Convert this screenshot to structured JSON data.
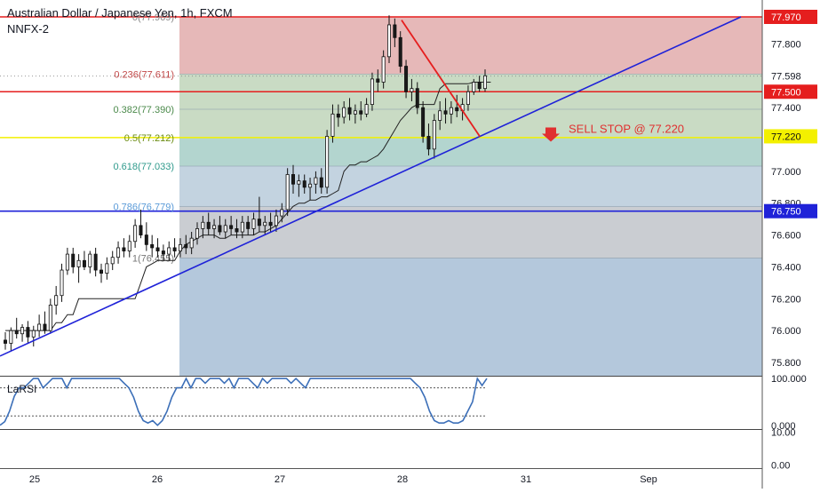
{
  "header": {
    "title": "Australian Dollar / Japanese Yen, 1h, FXCM",
    "subtitle": "NNFX-2"
  },
  "colors": {
    "fib_red_zone": "#e6b8b8",
    "fib_green_zone": "#c9dbc4",
    "fib_teal_zone": "#b3d5cf",
    "fib_blue_zone": "#c3d3e0",
    "fib_gray_zone": "#cacdd2",
    "fib_lower_zone": "#b4c8dc",
    "trendline": "#1f22d8",
    "red_line": "#e51e1e",
    "yellow_line": "#f3f000",
    "blue_line": "#1f22d8",
    "annotation": "#e03030",
    "rsi_line": "#3c6fb8",
    "candle_up": "#ffffff",
    "candle_down": "#1a1a1a",
    "baseline": "#222222"
  },
  "chart_data": {
    "type": "candlestick",
    "title": "Australian Dollar / Japanese Yen, 1h, FXCM",
    "subtitle": "NNFX-2",
    "price_axis": {
      "ylim": [
        75.72,
        78.04
      ],
      "ticks": [
        "77.800",
        "77.400",
        "77.000",
        "76.800",
        "76.600",
        "76.400",
        "76.200",
        "76.000",
        "75.800"
      ],
      "tick_values": [
        77.8,
        77.4,
        77.0,
        76.8,
        76.6,
        76.4,
        76.2,
        76.0,
        75.8
      ]
    },
    "x_axis": {
      "labels": [
        "25",
        "26",
        "27",
        "28",
        "31",
        "Sep"
      ],
      "xlim": [
        0,
        932
      ]
    },
    "price_labels": [
      {
        "text": "77.970",
        "value": 77.97,
        "style": "red"
      },
      {
        "text": "77.598",
        "value": 77.598,
        "style": "gray"
      },
      {
        "text": "77.500",
        "value": 77.5,
        "style": "red"
      },
      {
        "text": "77.220",
        "value": 77.22,
        "style": "yellow"
      },
      {
        "text": "76.750",
        "value": 76.75,
        "style": "blue"
      }
    ],
    "horizontal_lines": [
      {
        "value": 77.97,
        "color": "red"
      },
      {
        "value": 77.5,
        "color": "red"
      },
      {
        "value": 77.212,
        "color": "yellow"
      },
      {
        "value": 76.75,
        "color": "blue"
      }
    ],
    "fibonacci": {
      "levels": [
        {
          "ratio": 0,
          "value": 77.97,
          "label": "0(77.969)"
        },
        {
          "ratio": 0.236,
          "value": 77.611,
          "label": "0.236(77.611)"
        },
        {
          "ratio": 0.382,
          "value": 77.39,
          "label": "0.382(77.390)"
        },
        {
          "ratio": 0.5,
          "value": 77.212,
          "label": "0.5(77.212)"
        },
        {
          "ratio": 0.618,
          "value": 77.033,
          "label": "0.618(77.033)"
        },
        {
          "ratio": 0.786,
          "value": 76.779,
          "label": "0.786(76.779)"
        },
        {
          "ratio": 1,
          "value": 76.455,
          "label": "1(76.455)"
        }
      ]
    },
    "annotation": {
      "text": "SELL STOP @ 77.220",
      "value": 77.22
    },
    "trendline": {
      "from": {
        "x_label": "24",
        "price": 75.84
      },
      "to": {
        "x_label": "Sep+",
        "price": 77.97
      }
    },
    "red_diagonal": {
      "from_price": 77.95,
      "to_price": 77.22
    },
    "candles": [
      {
        "o": 75.94,
        "h": 75.99,
        "l": 75.88,
        "c": 75.92
      },
      {
        "o": 75.92,
        "h": 76.02,
        "l": 75.87,
        "c": 76.0
      },
      {
        "o": 76.0,
        "h": 76.08,
        "l": 75.95,
        "c": 75.98
      },
      {
        "o": 75.98,
        "h": 76.04,
        "l": 75.93,
        "c": 76.02
      },
      {
        "o": 76.02,
        "h": 76.06,
        "l": 75.92,
        "c": 75.96
      },
      {
        "o": 75.96,
        "h": 76.03,
        "l": 75.9,
        "c": 76.0
      },
      {
        "o": 76.0,
        "h": 76.1,
        "l": 75.96,
        "c": 76.04
      },
      {
        "o": 76.04,
        "h": 76.12,
        "l": 75.98,
        "c": 76.0
      },
      {
        "o": 76.0,
        "h": 76.2,
        "l": 75.98,
        "c": 76.16
      },
      {
        "o": 76.16,
        "h": 76.28,
        "l": 76.1,
        "c": 76.22
      },
      {
        "o": 76.22,
        "h": 76.42,
        "l": 76.18,
        "c": 76.38
      },
      {
        "o": 76.38,
        "h": 76.52,
        "l": 76.35,
        "c": 76.48
      },
      {
        "o": 76.48,
        "h": 76.52,
        "l": 76.36,
        "c": 76.4
      },
      {
        "o": 76.4,
        "h": 76.48,
        "l": 76.3,
        "c": 76.44
      },
      {
        "o": 76.44,
        "h": 76.5,
        "l": 76.38,
        "c": 76.4
      },
      {
        "o": 76.4,
        "h": 76.5,
        "l": 76.36,
        "c": 76.48
      },
      {
        "o": 76.48,
        "h": 76.52,
        "l": 76.34,
        "c": 76.38
      },
      {
        "o": 76.38,
        "h": 76.42,
        "l": 76.3,
        "c": 76.36
      },
      {
        "o": 76.36,
        "h": 76.46,
        "l": 76.32,
        "c": 76.42
      },
      {
        "o": 76.42,
        "h": 76.5,
        "l": 76.38,
        "c": 76.46
      },
      {
        "o": 76.46,
        "h": 76.56,
        "l": 76.42,
        "c": 76.52
      },
      {
        "o": 76.52,
        "h": 76.58,
        "l": 76.46,
        "c": 76.5
      },
      {
        "o": 76.5,
        "h": 76.6,
        "l": 76.46,
        "c": 76.56
      },
      {
        "o": 76.56,
        "h": 76.7,
        "l": 76.52,
        "c": 76.66
      },
      {
        "o": 76.66,
        "h": 76.76,
        "l": 76.58,
        "c": 76.6
      },
      {
        "o": 76.6,
        "h": 76.68,
        "l": 76.5,
        "c": 76.54
      },
      {
        "o": 76.54,
        "h": 76.6,
        "l": 76.46,
        "c": 76.52
      },
      {
        "o": 76.52,
        "h": 76.58,
        "l": 76.46,
        "c": 76.5
      },
      {
        "o": 76.5,
        "h": 76.54,
        "l": 76.44,
        "c": 76.48
      },
      {
        "o": 76.48,
        "h": 76.56,
        "l": 76.44,
        "c": 76.52
      },
      {
        "o": 76.52,
        "h": 76.58,
        "l": 76.46,
        "c": 76.5
      },
      {
        "o": 76.5,
        "h": 76.58,
        "l": 76.46,
        "c": 76.54
      },
      {
        "o": 76.54,
        "h": 76.6,
        "l": 76.48,
        "c": 76.52
      },
      {
        "o": 76.52,
        "h": 76.62,
        "l": 76.48,
        "c": 76.58
      },
      {
        "o": 76.58,
        "h": 76.68,
        "l": 76.54,
        "c": 76.64
      },
      {
        "o": 76.64,
        "h": 76.72,
        "l": 76.58,
        "c": 76.68
      },
      {
        "o": 76.68,
        "h": 76.74,
        "l": 76.6,
        "c": 76.64
      },
      {
        "o": 76.64,
        "h": 76.7,
        "l": 76.58,
        "c": 76.66
      },
      {
        "o": 76.66,
        "h": 76.72,
        "l": 76.6,
        "c": 76.62
      },
      {
        "o": 76.62,
        "h": 76.7,
        "l": 76.58,
        "c": 76.66
      },
      {
        "o": 76.66,
        "h": 76.72,
        "l": 76.6,
        "c": 76.64
      },
      {
        "o": 76.64,
        "h": 76.7,
        "l": 76.58,
        "c": 76.62
      },
      {
        "o": 76.62,
        "h": 76.72,
        "l": 76.58,
        "c": 76.68
      },
      {
        "o": 76.68,
        "h": 76.72,
        "l": 76.6,
        "c": 76.64
      },
      {
        "o": 76.64,
        "h": 76.74,
        "l": 76.6,
        "c": 76.7
      },
      {
        "o": 76.7,
        "h": 76.84,
        "l": 76.62,
        "c": 76.66
      },
      {
        "o": 76.66,
        "h": 76.72,
        "l": 76.6,
        "c": 76.68
      },
      {
        "o": 76.68,
        "h": 76.74,
        "l": 76.62,
        "c": 76.66
      },
      {
        "o": 76.66,
        "h": 76.76,
        "l": 76.62,
        "c": 76.72
      },
      {
        "o": 76.72,
        "h": 76.8,
        "l": 76.68,
        "c": 76.76
      },
      {
        "o": 76.76,
        "h": 77.02,
        "l": 76.72,
        "c": 76.98
      },
      {
        "o": 76.98,
        "h": 77.04,
        "l": 76.86,
        "c": 76.92
      },
      {
        "o": 76.92,
        "h": 76.98,
        "l": 76.84,
        "c": 76.94
      },
      {
        "o": 76.94,
        "h": 76.98,
        "l": 76.86,
        "c": 76.9
      },
      {
        "o": 76.9,
        "h": 76.96,
        "l": 76.82,
        "c": 76.92
      },
      {
        "o": 76.92,
        "h": 77.0,
        "l": 76.86,
        "c": 76.96
      },
      {
        "o": 76.96,
        "h": 77.02,
        "l": 76.86,
        "c": 76.9
      },
      {
        "o": 76.9,
        "h": 77.26,
        "l": 76.86,
        "c": 77.22
      },
      {
        "o": 77.22,
        "h": 77.42,
        "l": 77.18,
        "c": 77.36
      },
      {
        "o": 77.36,
        "h": 77.42,
        "l": 77.28,
        "c": 77.34
      },
      {
        "o": 77.34,
        "h": 77.44,
        "l": 77.3,
        "c": 77.4
      },
      {
        "o": 77.4,
        "h": 77.46,
        "l": 77.32,
        "c": 77.36
      },
      {
        "o": 77.36,
        "h": 77.42,
        "l": 77.3,
        "c": 77.38
      },
      {
        "o": 77.38,
        "h": 77.44,
        "l": 77.32,
        "c": 77.36
      },
      {
        "o": 77.36,
        "h": 77.46,
        "l": 77.34,
        "c": 77.42
      },
      {
        "o": 77.42,
        "h": 77.62,
        "l": 77.38,
        "c": 77.58
      },
      {
        "o": 77.58,
        "h": 77.64,
        "l": 77.5,
        "c": 77.56
      },
      {
        "o": 77.56,
        "h": 77.76,
        "l": 77.52,
        "c": 77.72
      },
      {
        "o": 77.72,
        "h": 77.98,
        "l": 77.68,
        "c": 77.92
      },
      {
        "o": 77.92,
        "h": 77.96,
        "l": 77.78,
        "c": 77.84
      },
      {
        "o": 77.84,
        "h": 77.88,
        "l": 77.62,
        "c": 77.66
      },
      {
        "o": 77.66,
        "h": 77.7,
        "l": 77.46,
        "c": 77.5
      },
      {
        "o": 77.5,
        "h": 77.58,
        "l": 77.44,
        "c": 77.52
      },
      {
        "o": 77.52,
        "h": 77.56,
        "l": 77.36,
        "c": 77.4
      },
      {
        "o": 77.4,
        "h": 77.44,
        "l": 77.18,
        "c": 77.22
      },
      {
        "o": 77.22,
        "h": 77.3,
        "l": 77.1,
        "c": 77.14
      },
      {
        "o": 77.14,
        "h": 77.36,
        "l": 77.08,
        "c": 77.32
      },
      {
        "o": 77.32,
        "h": 77.44,
        "l": 77.26,
        "c": 77.38
      },
      {
        "o": 77.38,
        "h": 77.46,
        "l": 77.3,
        "c": 77.36
      },
      {
        "o": 77.36,
        "h": 77.44,
        "l": 77.3,
        "c": 77.4
      },
      {
        "o": 77.4,
        "h": 77.48,
        "l": 77.34,
        "c": 77.38
      },
      {
        "o": 77.38,
        "h": 77.46,
        "l": 77.32,
        "c": 77.42
      },
      {
        "o": 77.42,
        "h": 77.54,
        "l": 77.38,
        "c": 77.5
      },
      {
        "o": 77.5,
        "h": 77.58,
        "l": 77.48,
        "c": 77.56
      },
      {
        "o": 77.56,
        "h": 77.6,
        "l": 77.5,
        "c": 77.52
      },
      {
        "o": 77.52,
        "h": 77.64,
        "l": 77.5,
        "c": 77.6
      }
    ],
    "baseline": [
      76.0,
      76.0,
      76.0,
      76.0,
      76.0,
      76.0,
      76.0,
      76.0,
      76.0,
      76.05,
      76.05,
      76.1,
      76.1,
      76.2,
      76.2,
      76.2,
      76.2,
      76.2,
      76.2,
      76.2,
      76.2,
      76.2,
      76.2,
      76.2,
      76.3,
      76.4,
      76.42,
      76.44,
      76.44,
      76.44,
      76.44,
      76.5,
      76.54,
      76.56,
      76.58,
      76.6,
      76.6,
      76.6,
      76.58,
      76.58,
      76.6,
      76.6,
      76.6,
      76.6,
      76.6,
      76.62,
      76.62,
      76.64,
      76.66,
      76.7,
      76.74,
      76.78,
      76.8,
      76.8,
      76.82,
      76.82,
      76.84,
      76.84,
      76.86,
      76.88,
      77.0,
      77.04,
      77.04,
      77.06,
      77.06,
      77.08,
      77.1,
      77.14,
      77.2,
      77.26,
      77.32,
      77.36,
      77.4,
      77.42,
      77.42,
      77.42,
      77.42,
      77.52,
      77.55,
      77.55,
      77.55,
      77.55,
      77.55,
      77.56,
      77.56,
      77.56,
      77.56
    ],
    "rsi": {
      "name": "LaRSI",
      "ticks": [
        "100.000",
        "0.000"
      ],
      "tick_values": [
        100,
        0
      ],
      "levels": [
        80,
        20
      ],
      "ylim": [
        -8,
        104
      ],
      "values": [
        0,
        8,
        30,
        62,
        80,
        80,
        90,
        100,
        100,
        80,
        90,
        100,
        100,
        100,
        80,
        100,
        100,
        100,
        100,
        100,
        100,
        100,
        100,
        100,
        100,
        100,
        90,
        80,
        60,
        30,
        10,
        5,
        10,
        0,
        10,
        30,
        60,
        80,
        80,
        100,
        80,
        100,
        100,
        90,
        100,
        100,
        100,
        90,
        100,
        80,
        100,
        100,
        100,
        90,
        80,
        100,
        90,
        100,
        100,
        100,
        100,
        90,
        100,
        90,
        80,
        100,
        100,
        100,
        100,
        100,
        100,
        100,
        100,
        100,
        100,
        100,
        100,
        100,
        100,
        100,
        100,
        100,
        100,
        100,
        100,
        100,
        100,
        90,
        80,
        60,
        30,
        10,
        5,
        5,
        10,
        5,
        5,
        10,
        30,
        50,
        100,
        85,
        100
      ]
    },
    "bottom_pane": {
      "ticks": [
        "10.00",
        "0.00"
      ],
      "tick_values": [
        10,
        0
      ],
      "ylim": [
        -1,
        11
      ]
    }
  }
}
